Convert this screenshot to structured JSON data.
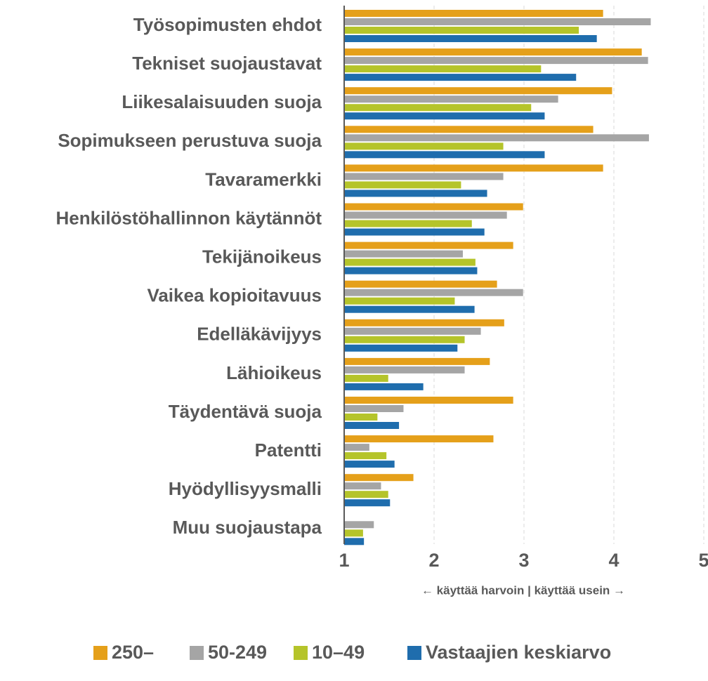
{
  "chart_data": {
    "type": "barh",
    "x_label": "← käyttää harvoin |  käyttää usein →",
    "categories": [
      "Työsopimusten ehdot",
      "Tekniset suojaustavat",
      "Liikesalaisuuden suoja",
      "Sopimukseen perustuva suoja",
      "Tavaramerkki",
      "Henkilöstöhallinnon käytännöt",
      "Tekijänoikeus",
      "Vaikea kopioitavuus",
      "Edelläkävijyys",
      "Lähioikeus",
      "Täydentävä suoja",
      "Patentti",
      "Hyödyllisyysmalli",
      "Muu suojaustapa"
    ],
    "series": [
      {
        "name": "250–",
        "color": "#E5A01A",
        "values": [
          3.88,
          4.31,
          3.98,
          3.77,
          3.88,
          2.99,
          2.88,
          2.7,
          2.78,
          2.62,
          2.88,
          2.66,
          1.77,
          null
        ]
      },
      {
        "name": "50-249",
        "color": "#A5A5A5",
        "values": [
          4.41,
          4.38,
          3.38,
          4.39,
          2.77,
          2.81,
          2.32,
          2.99,
          2.52,
          2.34,
          1.66,
          1.28,
          1.41,
          1.33
        ]
      },
      {
        "name": "10–49",
        "color": "#B5C42A",
        "values": [
          3.61,
          3.19,
          3.08,
          2.77,
          2.3,
          2.42,
          2.46,
          2.23,
          2.34,
          1.49,
          1.37,
          1.47,
          1.49,
          1.21
        ]
      },
      {
        "name": "Vastaajien keskiarvo",
        "color": "#1F6DAD",
        "values": [
          3.81,
          3.58,
          3.23,
          3.23,
          2.59,
          2.56,
          2.48,
          2.45,
          2.26,
          1.88,
          1.61,
          1.56,
          1.51,
          1.22
        ]
      }
    ],
    "xlim": [
      1,
      5
    ],
    "xticks": [
      1,
      2,
      3,
      4,
      5
    ],
    "grid": true
  }
}
